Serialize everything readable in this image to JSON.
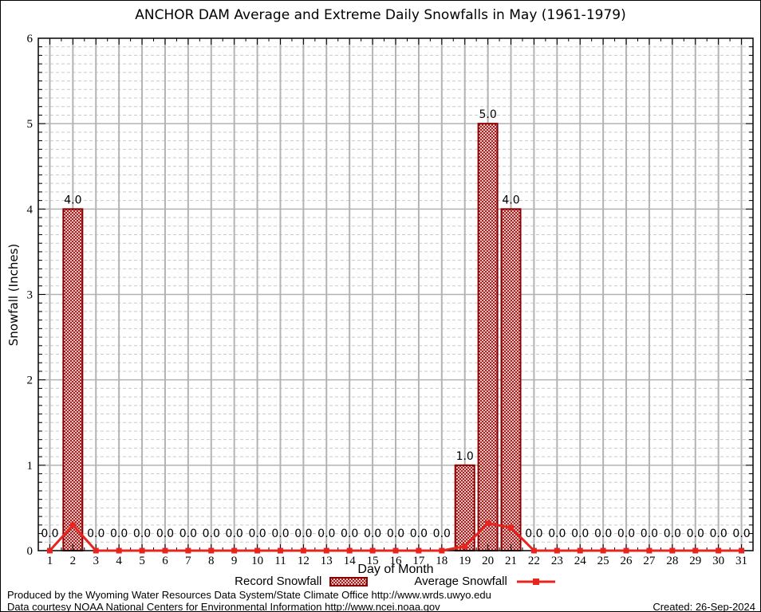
{
  "title": "ANCHOR DAM Average and Extreme Daily Snowfalls in May (1961-1979)",
  "legend": {
    "record_label": "Record Snowfall",
    "average_label": "Average Snowfall"
  },
  "footer": {
    "line1": "Produced by the Wyoming Water Resources Data System/State Climate Office http://www.wrds.uwyo.edu",
    "line2": "Data courtesy NOAA National Centers for Environmental Information http://www.ncei.noaa.gov",
    "created": "Created: 26-Sep-2024"
  },
  "chart_data": {
    "type": "bar",
    "title": "ANCHOR DAM Average and Extreme Daily Snowfalls in May (1961-1979)",
    "xlabel": "Day of Month",
    "ylabel": "Snowfall (Inches)",
    "x": [
      1,
      2,
      3,
      4,
      5,
      6,
      7,
      8,
      9,
      10,
      11,
      12,
      13,
      14,
      15,
      16,
      17,
      18,
      19,
      20,
      21,
      22,
      23,
      24,
      25,
      26,
      27,
      28,
      29,
      30,
      31
    ],
    "series": [
      {
        "name": "Record Snowfall",
        "type": "bar",
        "values": [
          0,
          4,
          0,
          0,
          0,
          0,
          0,
          0,
          0,
          0,
          0,
          0,
          0,
          0,
          0,
          0,
          0,
          0,
          1,
          5,
          4,
          0,
          0,
          0,
          0,
          0,
          0,
          0,
          0,
          0,
          0
        ],
        "labels": [
          "0.0",
          "4.0",
          "0.0",
          "0.0",
          "0.0",
          "0.0",
          "0.0",
          "0.0",
          "0.0",
          "0.0",
          "0.0",
          "0.0",
          "0.0",
          "0.0",
          "0.0",
          "0.0",
          "0.0",
          "0.0",
          "1.0",
          "5.0",
          "4.0",
          "0.0",
          "0.0",
          "0.0",
          "0.0",
          "0.0",
          "0.0",
          "0.0",
          "0.0",
          "0.0",
          "0.0"
        ]
      },
      {
        "name": "Average Snowfall",
        "type": "line",
        "values": [
          0,
          0.3,
          0,
          0,
          0,
          0,
          0,
          0,
          0,
          0,
          0,
          0,
          0,
          0,
          0,
          0,
          0,
          0,
          0.05,
          0.32,
          0.27,
          0,
          0,
          0,
          0,
          0,
          0,
          0,
          0,
          0,
          0
        ]
      }
    ],
    "ylim": [
      0,
      6
    ],
    "xlim": [
      0.5,
      31.5
    ],
    "yticks": [
      0,
      1,
      2,
      3,
      4,
      5,
      6
    ],
    "minor_y_step": 0.1,
    "grid": {
      "major": "solid",
      "minor": "dashed"
    },
    "legend_position": "bottom",
    "colors": {
      "bar_edge": "#8b0000",
      "bar_hatch": "#9b1111",
      "line": "#e8241f",
      "grid_major": "#b3b3b3",
      "grid_minor": "#c9c9c9",
      "frame": "#000000",
      "text": "#000000"
    }
  }
}
